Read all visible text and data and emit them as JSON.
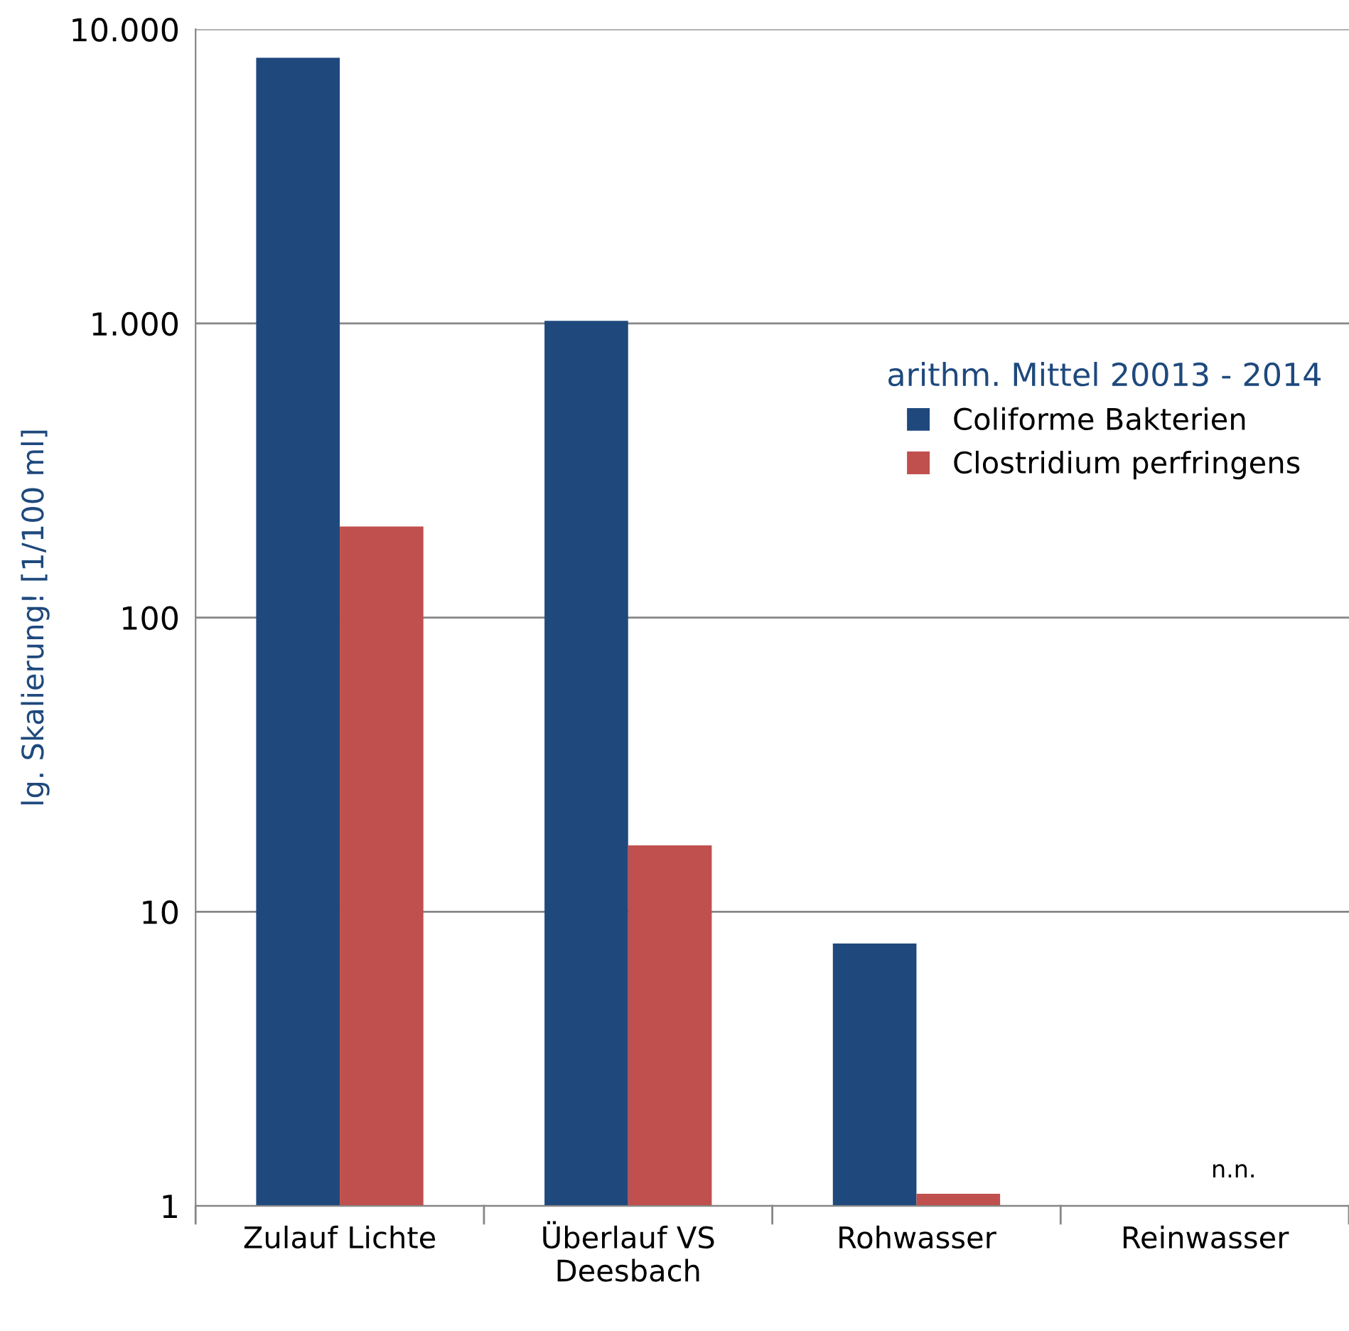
{
  "chart_data": {
    "type": "bar",
    "categories": [
      "Zulauf Lichte",
      "Überlauf VS\nDeesbach",
      "Rohwasser",
      "Reinwasser"
    ],
    "series": [
      {
        "name": "Coliforme Bakterien",
        "color": "#1f497d",
        "values": [
          8000,
          1020,
          7.8,
          null
        ]
      },
      {
        "name": "Clostridium perfringens",
        "color": "#c0504d",
        "values": [
          204,
          16.8,
          1.1,
          null
        ]
      }
    ],
    "ylabel": "lg. Skalierung! [1/100 ml]",
    "legend_title": "arithm. Mittel 20013 - 2014",
    "annotations": [
      "n.n."
    ],
    "log": true,
    "ylim": [
      1,
      10000
    ],
    "yticks": [
      1,
      10,
      100,
      {
        "value": 1000,
        "label": "1.000"
      },
      {
        "value": 10000,
        "label": "10.000"
      }
    ],
    "grid": "y",
    "legend": "top right"
  }
}
